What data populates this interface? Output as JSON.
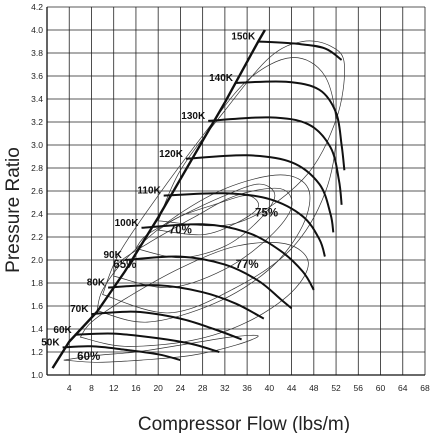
{
  "chart_data": {
    "type": "line",
    "xlabel": "Compressor Flow (lbs/m)",
    "ylabel": "Pressure Ratio",
    "xlim": [
      0,
      68
    ],
    "ylim": [
      1.0,
      4.2
    ],
    "x_ticks": [
      4,
      8,
      12,
      16,
      20,
      24,
      28,
      32,
      36,
      40,
      44,
      48,
      52,
      56,
      60,
      64,
      68
    ],
    "y_ticks": [
      1.0,
      1.2,
      1.4,
      1.6,
      1.8,
      2.0,
      2.2,
      2.4,
      2.6,
      2.8,
      3.0,
      3.2,
      3.4,
      3.6,
      3.8,
      4.0,
      4.2
    ],
    "grid": true,
    "surge_line": [
      [
        1,
        1.06
      ],
      [
        4,
        1.29
      ],
      [
        9,
        1.55
      ],
      [
        14,
        1.9
      ],
      [
        20,
        2.37
      ],
      [
        26,
        2.87
      ],
      [
        32,
        3.37
      ],
      [
        38,
        3.9
      ],
      [
        39.2,
        4.0
      ]
    ],
    "speed_lines": [
      {
        "label": "50K",
        "points": [
          [
            2.8,
            1.24
          ],
          [
            8,
            1.25
          ],
          [
            14,
            1.22
          ],
          [
            20,
            1.18
          ],
          [
            24,
            1.13
          ]
        ]
      },
      {
        "label": "60K",
        "points": [
          [
            5,
            1.35
          ],
          [
            12,
            1.36
          ],
          [
            20,
            1.32
          ],
          [
            26,
            1.27
          ],
          [
            31,
            1.2
          ]
        ]
      },
      {
        "label": "70K",
        "points": [
          [
            8,
            1.53
          ],
          [
            16,
            1.55
          ],
          [
            24,
            1.49
          ],
          [
            30,
            1.4
          ],
          [
            35,
            1.31
          ]
        ]
      },
      {
        "label": "80K",
        "points": [
          [
            11,
            1.76
          ],
          [
            20,
            1.78
          ],
          [
            28,
            1.72
          ],
          [
            34,
            1.62
          ],
          [
            39,
            1.49
          ]
        ]
      },
      {
        "label": "90K",
        "points": [
          [
            14,
            2.0
          ],
          [
            24,
            2.03
          ],
          [
            32,
            1.96
          ],
          [
            38,
            1.82
          ],
          [
            42,
            1.66
          ],
          [
            44,
            1.58
          ]
        ]
      },
      {
        "label": "100K",
        "points": [
          [
            17,
            2.28
          ],
          [
            28,
            2.31
          ],
          [
            36,
            2.24
          ],
          [
            42,
            2.08
          ],
          [
            46,
            1.9
          ],
          [
            48,
            1.74
          ]
        ]
      },
      {
        "label": "110K",
        "points": [
          [
            21,
            2.56
          ],
          [
            32,
            2.58
          ],
          [
            40,
            2.53
          ],
          [
            46,
            2.38
          ],
          [
            49,
            2.18
          ],
          [
            50,
            2.03
          ]
        ]
      },
      {
        "label": "120K",
        "points": [
          [
            25,
            2.88
          ],
          [
            36,
            2.91
          ],
          [
            44,
            2.85
          ],
          [
            49,
            2.66
          ],
          [
            51,
            2.4
          ],
          [
            51.5,
            2.24
          ]
        ]
      },
      {
        "label": "130K",
        "points": [
          [
            29,
            3.21
          ],
          [
            40,
            3.24
          ],
          [
            47,
            3.18
          ],
          [
            51,
            2.98
          ],
          [
            52.5,
            2.7
          ],
          [
            53,
            2.48
          ]
        ]
      },
      {
        "label": "140K",
        "points": [
          [
            34,
            3.54
          ],
          [
            43,
            3.55
          ],
          [
            49,
            3.48
          ],
          [
            52,
            3.28
          ],
          [
            53,
            3.0
          ],
          [
            53.5,
            2.78
          ]
        ]
      },
      {
        "label": "150K",
        "points": [
          [
            38,
            3.9
          ],
          [
            45,
            3.88
          ],
          [
            50,
            3.84
          ],
          [
            53,
            3.74
          ]
        ]
      }
    ],
    "efficiency_labels": [
      "60%",
      "65%",
      "70%",
      "75%",
      "77%"
    ]
  }
}
